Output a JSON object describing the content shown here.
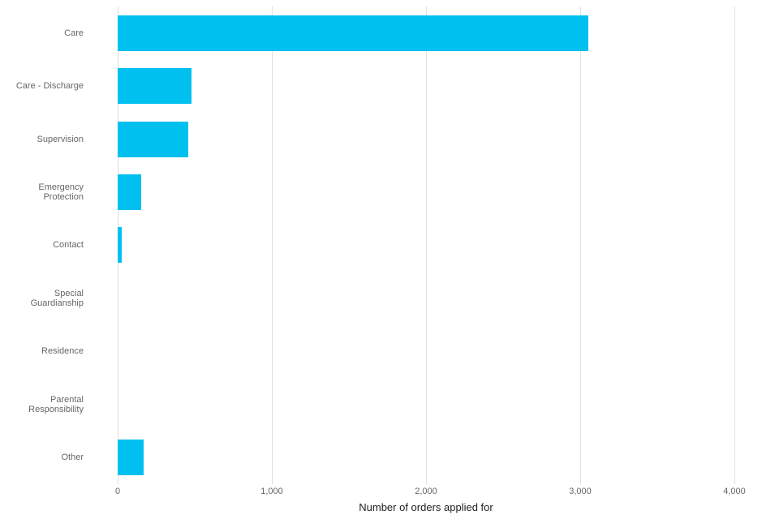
{
  "chart_data": {
    "type": "bar",
    "orientation": "horizontal",
    "title": "",
    "xlabel": "Number of orders applied for",
    "ylabel": "",
    "categories": [
      "Care",
      "Care - Discharge",
      "Supervision",
      "Emergency Protection",
      "Contact",
      "Special Guardianship",
      "Residence",
      "Parental Responsibility",
      "Other"
    ],
    "values": [
      3050,
      480,
      460,
      150,
      25,
      0,
      0,
      0,
      170
    ],
    "xlim": [
      0,
      4000
    ],
    "xticks": [
      0,
      1000,
      2000,
      3000,
      4000
    ],
    "xtick_labels": [
      "0",
      "1,000",
      "2,000",
      "3,000",
      "4,000"
    ],
    "bar_color": "#00c0f0",
    "gridline_color": "#e0e0e0",
    "grid": true,
    "legend": "none"
  }
}
